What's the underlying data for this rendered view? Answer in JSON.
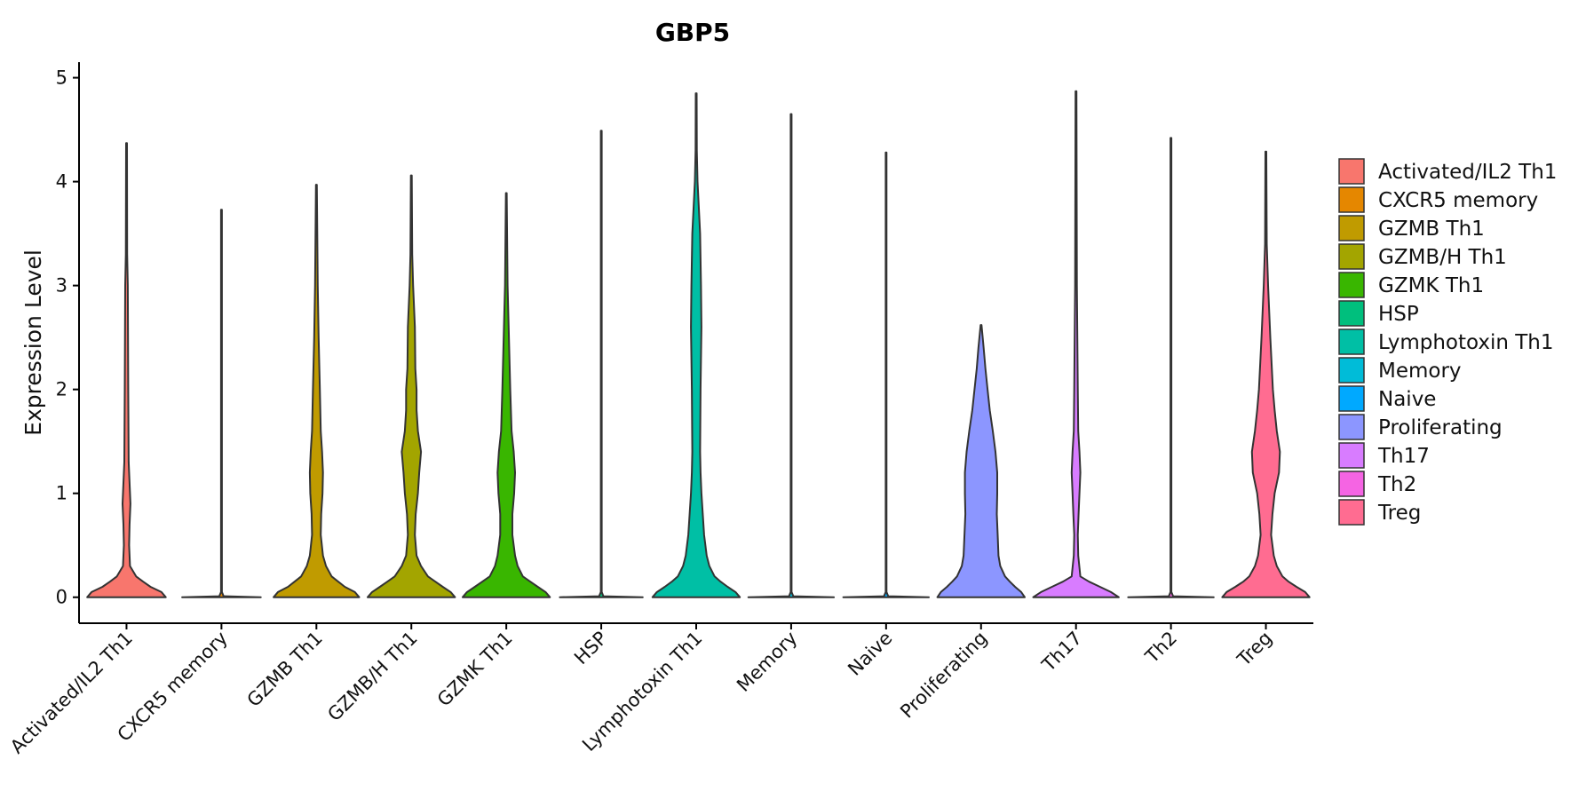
{
  "chart_data": {
    "type": "violin",
    "title": "GBP5",
    "xlabel": "",
    "ylabel": "Expression Level",
    "ylim": [
      -0.25,
      5.15
    ],
    "yticks": [
      0,
      1,
      2,
      3,
      4,
      5
    ],
    "categories": [
      "Activated/IL2 Th1",
      "CXCR5 memory",
      "GZMB Th1",
      "GZMB/H Th1",
      "GZMK Th1",
      "HSP",
      "Lymphotoxin Th1",
      "Memory",
      "Naive",
      "Proliferating",
      "Th17",
      "Th2",
      "Treg"
    ],
    "colors": [
      "#F8766D",
      "#E58700",
      "#C09B00",
      "#A3A500",
      "#39B600",
      "#00BF7D",
      "#00BFA5",
      "#00BCD8",
      "#00A9FF",
      "#8C96FF",
      "#D87CFF",
      "#F564E3",
      "#FF6C91"
    ],
    "series": [
      {
        "name": "Activated/IL2 Th1",
        "max": 4.37,
        "profile": [
          [
            0,
            0.9
          ],
          [
            0.05,
            0.8
          ],
          [
            0.1,
            0.55
          ],
          [
            0.15,
            0.38
          ],
          [
            0.2,
            0.22
          ],
          [
            0.3,
            0.08
          ],
          [
            0.5,
            0.06
          ],
          [
            0.7,
            0.07
          ],
          [
            0.9,
            0.09
          ],
          [
            1.0,
            0.08
          ],
          [
            1.3,
            0.05
          ],
          [
            2.0,
            0.04
          ],
          [
            3.0,
            0.03
          ],
          [
            3.3,
            0.015
          ],
          [
            4.37,
            0.01
          ]
        ]
      },
      {
        "name": "CXCR5 memory",
        "max": 3.73,
        "profile": [
          [
            0,
            0.9
          ],
          [
            0.01,
            0.05
          ],
          [
            0.05,
            0.01
          ],
          [
            3.73,
            0.01
          ]
        ]
      },
      {
        "name": "GZMB Th1",
        "max": 3.97,
        "profile": [
          [
            0,
            0.98
          ],
          [
            0.05,
            0.88
          ],
          [
            0.1,
            0.65
          ],
          [
            0.15,
            0.5
          ],
          [
            0.2,
            0.35
          ],
          [
            0.3,
            0.22
          ],
          [
            0.4,
            0.15
          ],
          [
            0.6,
            0.1
          ],
          [
            0.8,
            0.11
          ],
          [
            1.0,
            0.14
          ],
          [
            1.2,
            0.15
          ],
          [
            1.4,
            0.13
          ],
          [
            1.6,
            0.1
          ],
          [
            2.0,
            0.08
          ],
          [
            2.5,
            0.05
          ],
          [
            3.0,
            0.03
          ],
          [
            3.97,
            0.01
          ]
        ]
      },
      {
        "name": "GZMB/H Th1",
        "max": 4.06,
        "profile": [
          [
            0,
            1.0
          ],
          [
            0.05,
            0.9
          ],
          [
            0.1,
            0.72
          ],
          [
            0.15,
            0.55
          ],
          [
            0.2,
            0.38
          ],
          [
            0.3,
            0.22
          ],
          [
            0.4,
            0.12
          ],
          [
            0.6,
            0.08
          ],
          [
            0.8,
            0.1
          ],
          [
            1.0,
            0.15
          ],
          [
            1.2,
            0.18
          ],
          [
            1.4,
            0.22
          ],
          [
            1.6,
            0.15
          ],
          [
            1.8,
            0.12
          ],
          [
            2.0,
            0.12
          ],
          [
            2.2,
            0.09
          ],
          [
            2.6,
            0.08
          ],
          [
            3.0,
            0.04
          ],
          [
            3.3,
            0.02
          ],
          [
            4.06,
            0.01
          ]
        ]
      },
      {
        "name": "GZMK Th1",
        "max": 3.89,
        "profile": [
          [
            0,
            1.0
          ],
          [
            0.05,
            0.9
          ],
          [
            0.1,
            0.72
          ],
          [
            0.15,
            0.55
          ],
          [
            0.2,
            0.38
          ],
          [
            0.3,
            0.26
          ],
          [
            0.4,
            0.2
          ],
          [
            0.6,
            0.14
          ],
          [
            0.8,
            0.14
          ],
          [
            1.0,
            0.18
          ],
          [
            1.2,
            0.2
          ],
          [
            1.4,
            0.17
          ],
          [
            1.6,
            0.12
          ],
          [
            2.0,
            0.09
          ],
          [
            2.5,
            0.06
          ],
          [
            3.0,
            0.03
          ],
          [
            3.89,
            0.01
          ]
        ]
      },
      {
        "name": "HSP",
        "max": 4.49,
        "profile": [
          [
            0,
            0.95
          ],
          [
            0.01,
            0.05
          ],
          [
            0.05,
            0.01
          ],
          [
            4.49,
            0.01
          ]
        ]
      },
      {
        "name": "Lymphotoxin Th1",
        "max": 4.85,
        "profile": [
          [
            0,
            1.0
          ],
          [
            0.05,
            0.9
          ],
          [
            0.1,
            0.72
          ],
          [
            0.15,
            0.56
          ],
          [
            0.2,
            0.42
          ],
          [
            0.3,
            0.3
          ],
          [
            0.4,
            0.24
          ],
          [
            0.6,
            0.18
          ],
          [
            0.8,
            0.15
          ],
          [
            1.0,
            0.12
          ],
          [
            1.2,
            0.1
          ],
          [
            1.4,
            0.09
          ],
          [
            2.0,
            0.1
          ],
          [
            2.6,
            0.12
          ],
          [
            3.0,
            0.11
          ],
          [
            3.5,
            0.09
          ],
          [
            4.0,
            0.03
          ],
          [
            4.3,
            0.015
          ],
          [
            4.85,
            0.01
          ]
        ]
      },
      {
        "name": "Memory",
        "max": 4.65,
        "profile": [
          [
            0,
            0.98
          ],
          [
            0.01,
            0.05
          ],
          [
            0.05,
            0.01
          ],
          [
            4.65,
            0.01
          ]
        ]
      },
      {
        "name": "Naive",
        "max": 4.28,
        "profile": [
          [
            0,
            0.98
          ],
          [
            0.01,
            0.05
          ],
          [
            0.05,
            0.01
          ],
          [
            4.28,
            0.01
          ]
        ]
      },
      {
        "name": "Proliferating",
        "max": 2.62,
        "profile": [
          [
            0,
            1.0
          ],
          [
            0.05,
            0.92
          ],
          [
            0.1,
            0.78
          ],
          [
            0.15,
            0.66
          ],
          [
            0.2,
            0.55
          ],
          [
            0.3,
            0.44
          ],
          [
            0.4,
            0.4
          ],
          [
            0.6,
            0.38
          ],
          [
            0.8,
            0.36
          ],
          [
            1.0,
            0.37
          ],
          [
            1.2,
            0.37
          ],
          [
            1.4,
            0.33
          ],
          [
            1.6,
            0.27
          ],
          [
            1.8,
            0.2
          ],
          [
            2.0,
            0.15
          ],
          [
            2.2,
            0.1
          ],
          [
            2.4,
            0.06
          ],
          [
            2.62,
            0.01
          ]
        ]
      },
      {
        "name": "Th17",
        "max": 4.87,
        "profile": [
          [
            0,
            0.98
          ],
          [
            0.05,
            0.8
          ],
          [
            0.1,
            0.55
          ],
          [
            0.15,
            0.3
          ],
          [
            0.2,
            0.1
          ],
          [
            0.4,
            0.05
          ],
          [
            0.6,
            0.04
          ],
          [
            0.8,
            0.06
          ],
          [
            1.0,
            0.08
          ],
          [
            1.2,
            0.1
          ],
          [
            1.4,
            0.08
          ],
          [
            1.6,
            0.05
          ],
          [
            2.0,
            0.04
          ],
          [
            3.0,
            0.02
          ],
          [
            4.87,
            0.01
          ]
        ]
      },
      {
        "name": "Th2",
        "max": 4.42,
        "profile": [
          [
            0,
            0.98
          ],
          [
            0.01,
            0.05
          ],
          [
            0.05,
            0.01
          ],
          [
            4.42,
            0.01
          ]
        ]
      },
      {
        "name": "Treg",
        "max": 4.29,
        "profile": [
          [
            0,
            1.0
          ],
          [
            0.05,
            0.9
          ],
          [
            0.1,
            0.7
          ],
          [
            0.15,
            0.52
          ],
          [
            0.2,
            0.38
          ],
          [
            0.3,
            0.25
          ],
          [
            0.4,
            0.18
          ],
          [
            0.6,
            0.12
          ],
          [
            0.8,
            0.15
          ],
          [
            1.0,
            0.2
          ],
          [
            1.2,
            0.3
          ],
          [
            1.4,
            0.32
          ],
          [
            1.6,
            0.25
          ],
          [
            1.8,
            0.2
          ],
          [
            2.0,
            0.16
          ],
          [
            2.5,
            0.1
          ],
          [
            3.0,
            0.05
          ],
          [
            3.4,
            0.02
          ],
          [
            4.29,
            0.01
          ]
        ]
      }
    ],
    "legend_position": "right"
  }
}
